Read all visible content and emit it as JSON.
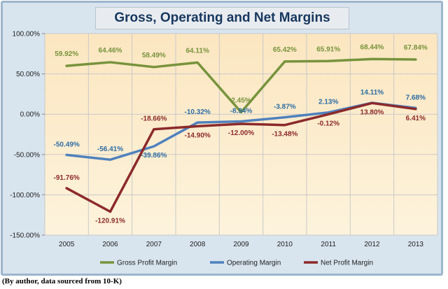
{
  "chart_data": {
    "type": "line",
    "title": "Gross, Operating and Net Margins",
    "categories": [
      "2005",
      "2006",
      "2007",
      "2008",
      "2009",
      "2010",
      "2011",
      "2012",
      "2013"
    ],
    "y_ticks": [
      "100.00%",
      "50.00%",
      "0.00%",
      "-50.00%",
      "-100.00%",
      "-150.00%"
    ],
    "ylim": [
      -150,
      100
    ],
    "grid": true,
    "legend_position": "bottom",
    "series": [
      {
        "name": "Gross Profit Margin",
        "color": "#77933c",
        "label_color": "#77933c",
        "values": [
          59.92,
          64.46,
          58.49,
          64.11,
          2.45,
          65.42,
          65.91,
          68.44,
          67.84
        ],
        "labels": [
          "59.92%",
          "64.46%",
          "58.49%",
          "64.11%",
          "2.45%",
          "65.42%",
          "65.91%",
          "68.44%",
          "67.84%"
        ]
      },
      {
        "name": "Operating Margin",
        "color": "#4f81bd",
        "label_color": "#2e6da4",
        "values": [
          -50.49,
          -56.41,
          -39.86,
          -10.32,
          -8.94,
          -3.87,
          2.13,
          14.11,
          7.68
        ],
        "labels": [
          "-50.49%",
          "-56.41%",
          "-39.86%",
          "-10.32%",
          "-8.94%",
          "-3.87%",
          "2.13%",
          "14.11%",
          "7.68%"
        ]
      },
      {
        "name": "Net Profit Margin",
        "color": "#8b2a2a",
        "label_color": "#8b2a2a",
        "values": [
          -91.76,
          -120.91,
          -18.66,
          -14.9,
          -12.0,
          -13.48,
          -0.12,
          13.8,
          6.41
        ],
        "labels": [
          "-91.76%",
          "-120.91%",
          "-18.66%",
          "-14.90%",
          "-12.00%",
          "-13.48%",
          "-0.12%",
          "13.80%",
          "6.41%"
        ]
      }
    ]
  },
  "source_note": "(By author, data sourced from 10-K)"
}
